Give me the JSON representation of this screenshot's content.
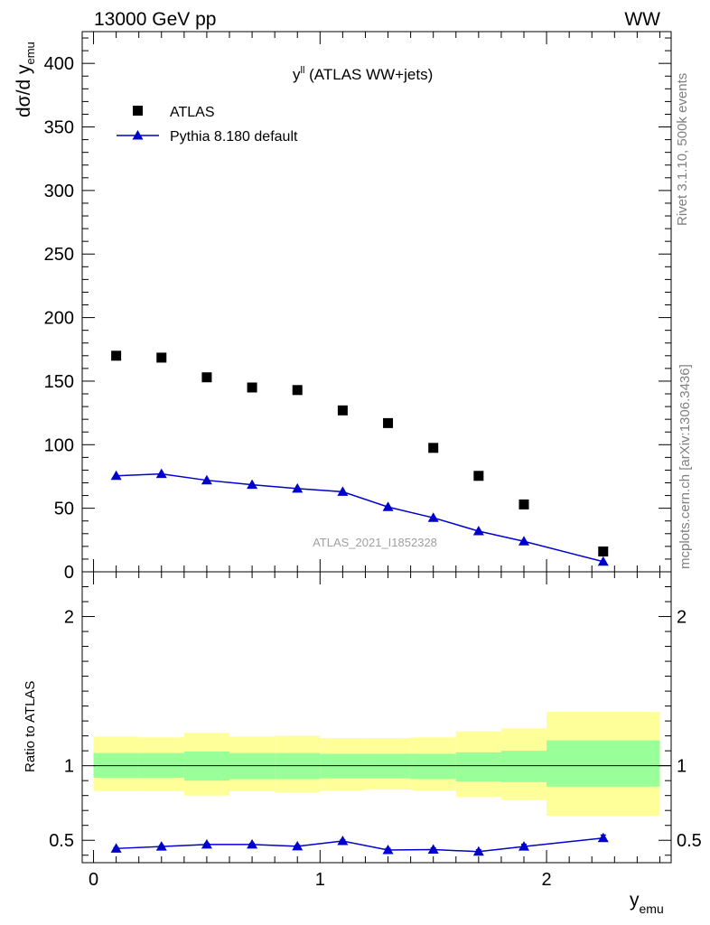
{
  "header": {
    "left": "13000 GeV pp",
    "right": "WW"
  },
  "side_text": {
    "top": "Rivet 3.1.10,  500k events",
    "bottom": "mcplots.cern.ch [arXiv:1306.3436]"
  },
  "colors": {
    "mc": "#0000cc",
    "band_stat": "#99ff99",
    "band_total": "#ffff99",
    "data": "#000000",
    "side_text": "#808080"
  },
  "chart_data": {
    "type": "scatter",
    "title": {
      "main": "y",
      "sup": "ll",
      "rest": " (ATLAS WW+jets)"
    },
    "watermark": "ATLAS_2021_I1852328",
    "xlabel": {
      "main": "y",
      "sub": "emu"
    },
    "ylabel": {
      "main": "dσ/d y",
      "sub": "emu"
    },
    "xlim": [
      -0.05,
      2.55
    ],
    "ylim": [
      0,
      425
    ],
    "yticks": [
      0,
      50,
      100,
      150,
      200,
      250,
      300,
      350,
      400
    ],
    "ytick_labels": [
      "0",
      "50",
      "100",
      "150",
      "200",
      "250",
      "300",
      "350",
      "400"
    ],
    "xticks": [
      0,
      1,
      2
    ],
    "xtick_labels": [
      "0",
      "1",
      "2"
    ],
    "legend": {
      "position": "top-left",
      "entries": [
        {
          "label": "ATLAS",
          "marker": "square"
        },
        {
          "label": "Pythia 8.180 default",
          "marker": "triangle-line"
        }
      ]
    },
    "bins": [
      {
        "lo": 0.0,
        "hi": 0.2
      },
      {
        "lo": 0.2,
        "hi": 0.4
      },
      {
        "lo": 0.4,
        "hi": 0.6
      },
      {
        "lo": 0.6,
        "hi": 0.8
      },
      {
        "lo": 0.8,
        "hi": 1.0
      },
      {
        "lo": 1.0,
        "hi": 1.2
      },
      {
        "lo": 1.2,
        "hi": 1.4
      },
      {
        "lo": 1.4,
        "hi": 1.6
      },
      {
        "lo": 1.6,
        "hi": 1.8
      },
      {
        "lo": 1.8,
        "hi": 2.0
      },
      {
        "lo": 2.0,
        "hi": 2.5
      }
    ],
    "series": [
      {
        "name": "ATLAS",
        "x": [
          0.1,
          0.3,
          0.5,
          0.7,
          0.9,
          1.1,
          1.3,
          1.5,
          1.7,
          1.9,
          2.25
        ],
        "y": [
          170,
          168.5,
          153,
          145,
          143,
          127,
          117,
          97.5,
          75.5,
          53,
          16
        ]
      },
      {
        "name": "Pythia 8.180 default",
        "x": [
          0.1,
          0.3,
          0.5,
          0.7,
          0.9,
          1.1,
          1.3,
          1.5,
          1.7,
          1.9,
          2.25
        ],
        "y": [
          75.5,
          77,
          72,
          68.5,
          65.5,
          63,
          51,
          42.5,
          32,
          24,
          8
        ]
      }
    ],
    "ratio": {
      "ylabel": "Ratio to ATLAS",
      "ylim": [
        0.35,
        2.3
      ],
      "yticks": [
        0.5,
        1,
        2
      ],
      "ytick_labels": [
        "0.5",
        "1",
        "2"
      ],
      "band_stat": [
        {
          "lo": 0.92,
          "hi": 1.085
        },
        {
          "lo": 0.92,
          "hi": 1.085
        },
        {
          "lo": 0.9,
          "hi": 1.095
        },
        {
          "lo": 0.91,
          "hi": 1.085
        },
        {
          "lo": 0.91,
          "hi": 1.085
        },
        {
          "lo": 0.915,
          "hi": 1.08
        },
        {
          "lo": 0.915,
          "hi": 1.08
        },
        {
          "lo": 0.91,
          "hi": 1.08
        },
        {
          "lo": 0.895,
          "hi": 1.09
        },
        {
          "lo": 0.89,
          "hi": 1.1
        },
        {
          "lo": 0.86,
          "hi": 1.17
        }
      ],
      "band_total": [
        {
          "lo": 0.83,
          "hi": 1.195
        },
        {
          "lo": 0.83,
          "hi": 1.19
        },
        {
          "lo": 0.8,
          "hi": 1.22
        },
        {
          "lo": 0.83,
          "hi": 1.195
        },
        {
          "lo": 0.82,
          "hi": 1.2
        },
        {
          "lo": 0.835,
          "hi": 1.185
        },
        {
          "lo": 0.84,
          "hi": 1.185
        },
        {
          "lo": 0.835,
          "hi": 1.19
        },
        {
          "lo": 0.79,
          "hi": 1.23
        },
        {
          "lo": 0.77,
          "hi": 1.25
        },
        {
          "lo": 0.665,
          "hi": 1.36
        }
      ],
      "mc_ratio": {
        "x": [
          0.1,
          0.3,
          0.5,
          0.7,
          0.9,
          1.1,
          1.3,
          1.5,
          1.7,
          1.9,
          2.25
        ],
        "y": [
          0.445,
          0.458,
          0.472,
          0.472,
          0.46,
          0.495,
          0.435,
          0.438,
          0.424,
          0.458,
          0.515
        ],
        "err": [
          0.006,
          0.006,
          0.007,
          0.007,
          0.007,
          0.008,
          0.01,
          0.01,
          0.012,
          0.015,
          0.02
        ]
      }
    }
  }
}
